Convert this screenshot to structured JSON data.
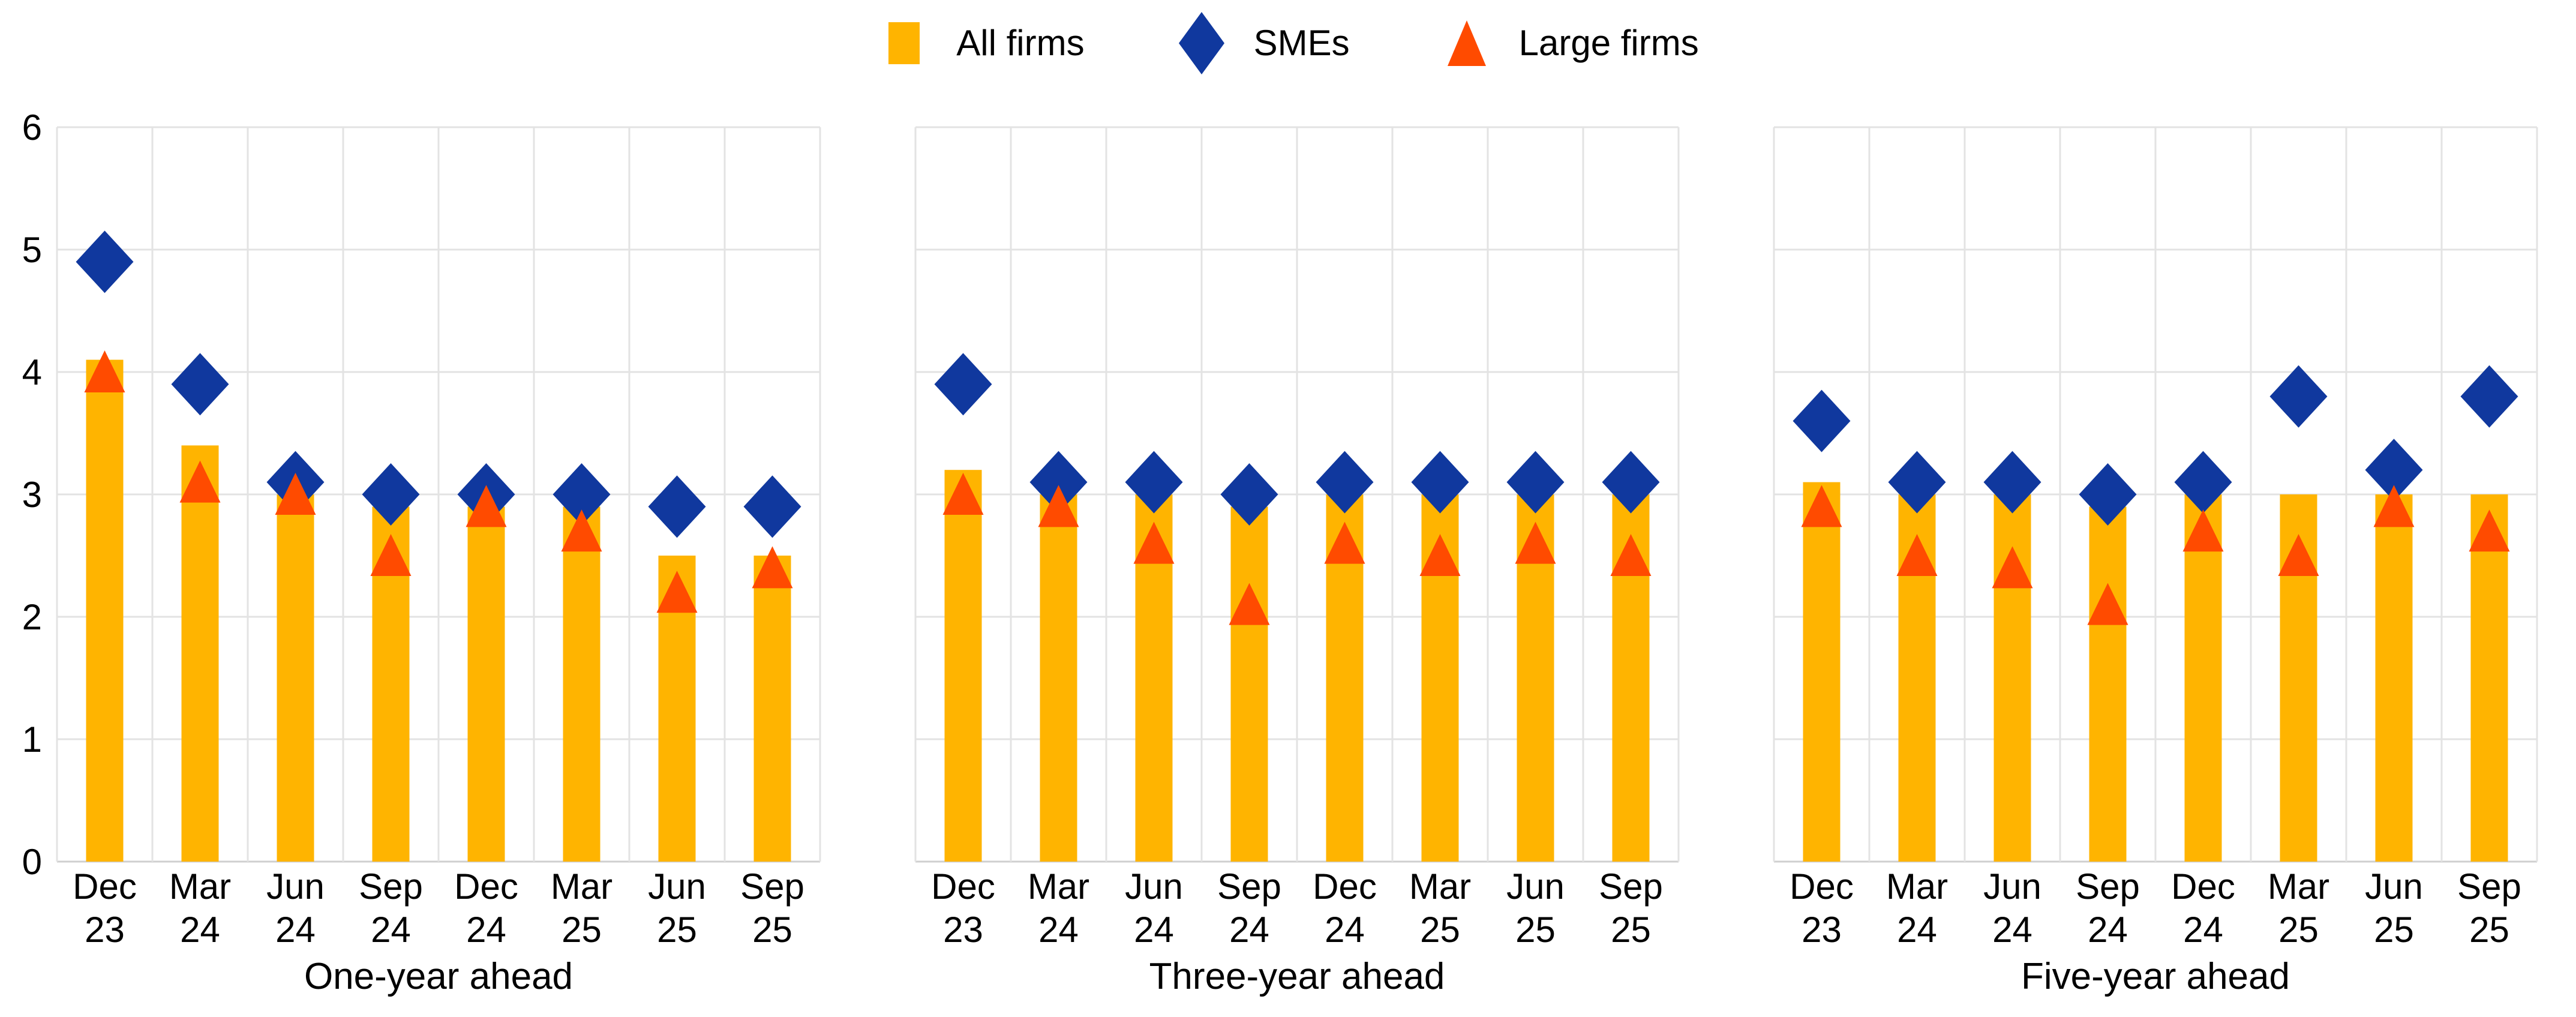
{
  "chart_data": {
    "type": "bar",
    "title": "",
    "categories": [
      "Dec 23",
      "Mar 24",
      "Jun 24",
      "Sep 24",
      "Dec 24",
      "Mar 25",
      "Jun 25",
      "Sep 25"
    ],
    "ylim": [
      0,
      6
    ],
    "yticks": [
      0,
      1,
      2,
      3,
      4,
      5,
      6
    ],
    "grid": true,
    "legend_position": "top",
    "legend": [
      {
        "label": "All firms",
        "marker": "square",
        "color": "#FFB400"
      },
      {
        "label": "SMEs",
        "marker": "diamond",
        "color": "#10389E"
      },
      {
        "label": "Large firms",
        "marker": "triangle",
        "color": "#FF4B00"
      }
    ],
    "panels": [
      {
        "title": "One-year ahead",
        "series": [
          {
            "name": "All firms",
            "type": "bar",
            "values": [
              4.1,
              3.4,
              3.0,
              2.9,
              2.9,
              2.9,
              2.5,
              2.5
            ]
          },
          {
            "name": "SMEs",
            "type": "diamond",
            "values": [
              4.9,
              3.9,
              3.1,
              3.0,
              3.0,
              3.0,
              2.9,
              2.9
            ]
          },
          {
            "name": "Large firms",
            "type": "triangle",
            "values": [
              4.0,
              3.1,
              3.0,
              2.5,
              2.9,
              2.7,
              2.2,
              2.4
            ]
          }
        ]
      },
      {
        "title": "Three-year ahead",
        "series": [
          {
            "name": "All firms",
            "type": "bar",
            "values": [
              3.2,
              3.0,
              3.0,
              2.9,
              3.0,
              3.0,
              3.0,
              3.0
            ]
          },
          {
            "name": "SMEs",
            "type": "diamond",
            "values": [
              3.9,
              3.1,
              3.1,
              3.0,
              3.1,
              3.1,
              3.1,
              3.1
            ]
          },
          {
            "name": "Large firms",
            "type": "triangle",
            "values": [
              3.0,
              2.9,
              2.6,
              2.1,
              2.6,
              2.5,
              2.6,
              2.5
            ]
          }
        ]
      },
      {
        "title": "Five-year ahead",
        "series": [
          {
            "name": "All firms",
            "type": "bar",
            "values": [
              3.1,
              3.0,
              3.0,
              2.9,
              3.0,
              3.0,
              3.0,
              3.0
            ]
          },
          {
            "name": "SMEs",
            "type": "diamond",
            "values": [
              3.6,
              3.1,
              3.1,
              3.0,
              3.1,
              3.8,
              3.2,
              3.8
            ]
          },
          {
            "name": "Large firms",
            "type": "triangle",
            "values": [
              2.9,
              2.5,
              2.4,
              2.1,
              2.7,
              2.5,
              2.9,
              2.7
            ]
          }
        ]
      }
    ]
  },
  "colors": {
    "bar": "#FFB400",
    "diamond": "#10389E",
    "triangle": "#FF4B00",
    "grid": "#E3E3E3",
    "baseline": "#CFCFCF",
    "axis_text": "#000000",
    "background": "#FFFFFF"
  }
}
